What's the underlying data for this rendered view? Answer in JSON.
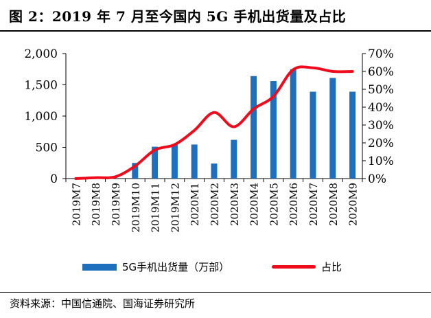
{
  "title": "图 2：2019 年 7 月至今国内 5G 手机出货量及占比",
  "source": "资料来源：中国信通院、国海证券研究所",
  "colors": {
    "bar": "#1f6fbf",
    "line": "#ee0b1b"
  },
  "chart_data": {
    "type": "bar",
    "categories": [
      "2019M7",
      "2019M8",
      "2019M9",
      "2019M10",
      "2019M11",
      "2019M12",
      "2020M1",
      "2020M2",
      "2020M3",
      "2020M4",
      "2020M5",
      "2020M6",
      "2020M7",
      "2020M8",
      "2020M9"
    ],
    "series": [
      {
        "name": "5G手机出货量（万部）",
        "type": "bar",
        "axis": "left",
        "values": [
          0,
          0,
          0,
          250,
          510,
          545,
          545,
          240,
          620,
          1640,
          1560,
          1750,
          1390,
          1610,
          1390
        ]
      },
      {
        "name": "占比",
        "type": "line",
        "axis": "right",
        "values": [
          0,
          0.5,
          1,
          7,
          16,
          19,
          27,
          37,
          29,
          39,
          46,
          61,
          62,
          60,
          60
        ]
      }
    ],
    "left_axis": {
      "ylim": [
        0,
        2000
      ],
      "ticks": [
        "0",
        "500",
        "1,000",
        "1,500",
        "2,000"
      ],
      "tick_values": [
        0,
        500,
        1000,
        1500,
        2000
      ]
    },
    "right_axis": {
      "ylim": [
        0,
        70
      ],
      "ticks": [
        "0%",
        "10%",
        "20%",
        "30%",
        "40%",
        "50%",
        "60%",
        "70%"
      ],
      "tick_values": [
        0,
        10,
        20,
        30,
        40,
        50,
        60,
        70
      ]
    },
    "legend": [
      "5G手机出货量（万部）",
      "占比"
    ],
    "legend_position": "bottom"
  }
}
